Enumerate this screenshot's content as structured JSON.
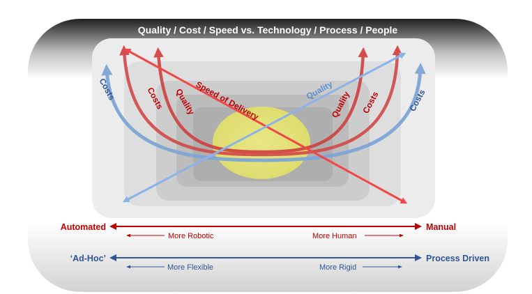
{
  "title": "Quality / Cost / Speed vs. Technology / Process / People",
  "curve_labels": {
    "left_costs_outer": "Costs",
    "left_costs_inner": "Costs",
    "left_quality": "Quality",
    "speed_of_delivery": "Speed of Delivery",
    "quality_diagonal": "Quality",
    "right_quality": "Quality",
    "right_costs_inner": "Costs",
    "right_costs_outer": "Costs"
  },
  "axis_automation": {
    "left": "Automated",
    "right": "Manual",
    "left_sub": "More Robotic",
    "right_sub": "More Human"
  },
  "axis_process": {
    "left": "‘Ad-Hoc’",
    "right": "Process Driven",
    "left_sub": "More Flexible",
    "right_sub": "More Rigid"
  },
  "colors": {
    "red": "#c00000",
    "bright_red": "#f04848",
    "blue_dark": "#2f5597",
    "blue_light": "#7fa6d6",
    "quality_diag": "#8ab4e8",
    "center_ellipse": "#e9ea78"
  }
}
